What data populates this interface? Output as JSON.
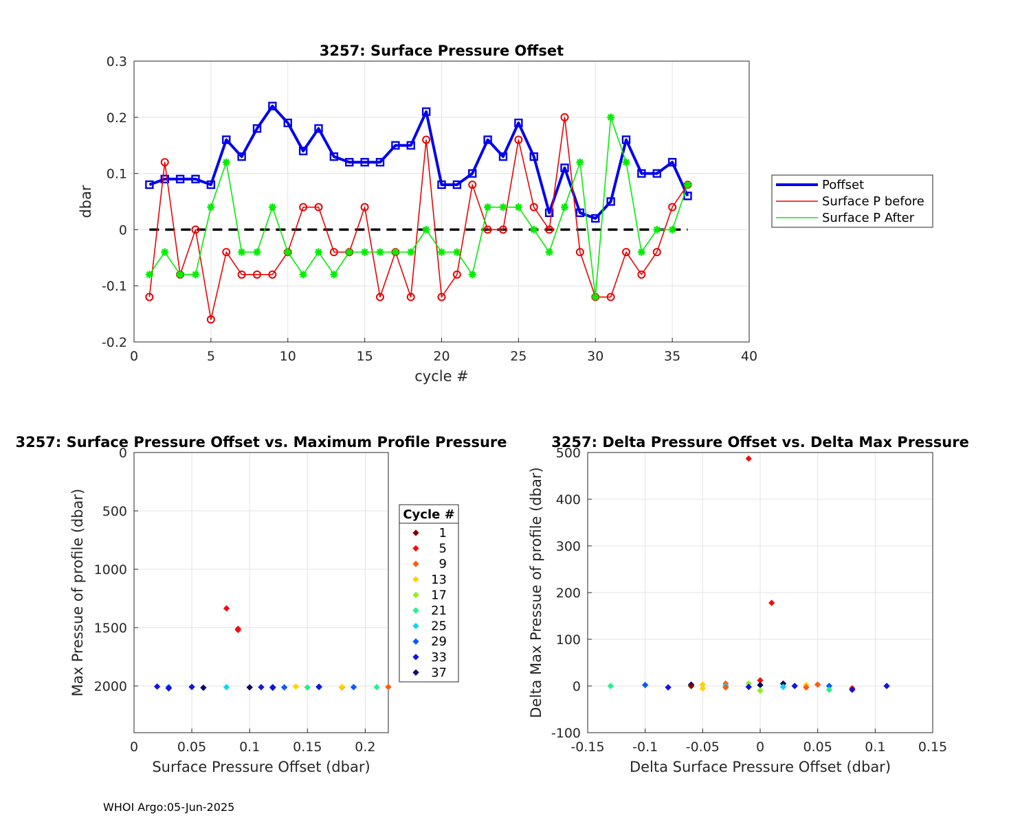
{
  "chart_data": [
    {
      "type": "line",
      "title": "3257: Surface Pressure Offset",
      "xlabel": "cycle #",
      "ylabel": "dbar",
      "xlim": [
        0,
        40
      ],
      "ylim": [
        -0.2,
        0.3
      ],
      "xticks": [
        "0",
        "5",
        "10",
        "15",
        "20",
        "25",
        "30",
        "35",
        "40"
      ],
      "yticks": [
        "-0.2",
        "-0.1",
        "0",
        "0.1",
        "0.2",
        "0.3"
      ],
      "grid": true,
      "legend_position": "right",
      "reference_line": {
        "y": 0,
        "style": "dashed",
        "color": "#000000"
      },
      "x": [
        1,
        2,
        3,
        4,
        5,
        6,
        7,
        8,
        9,
        10,
        11,
        12,
        13,
        14,
        15,
        16,
        17,
        18,
        19,
        20,
        21,
        22,
        23,
        24,
        25,
        26,
        27,
        28,
        29,
        30,
        31,
        32,
        33,
        34,
        35,
        36
      ],
      "series": [
        {
          "name": "Poffset",
          "color": "#0000ee",
          "marker": "square",
          "width": 4,
          "values": [
            0.08,
            0.09,
            0.09,
            0.09,
            0.08,
            0.16,
            0.13,
            0.18,
            0.22,
            0.19,
            0.14,
            0.18,
            0.13,
            0.12,
            0.12,
            0.12,
            0.15,
            0.15,
            0.21,
            0.08,
            0.08,
            0.1,
            0.16,
            0.13,
            0.19,
            0.13,
            0.03,
            0.11,
            0.03,
            0.02,
            0.05,
            0.16,
            0.1,
            0.1,
            0.12,
            0.06
          ]
        },
        {
          "name": "Surface P before",
          "color": "#ee0000",
          "marker": "circle",
          "width": 1.6,
          "values": [
            -0.12,
            0.12,
            -0.08,
            0.0,
            -0.16,
            -0.04,
            -0.08,
            -0.08,
            -0.08,
            -0.04,
            0.04,
            0.04,
            -0.04,
            -0.04,
            0.04,
            -0.12,
            -0.04,
            -0.12,
            0.16,
            -0.12,
            -0.08,
            0.08,
            0.0,
            0.0,
            0.16,
            0.04,
            0.0,
            0.2,
            -0.04,
            -0.12,
            -0.12,
            -0.04,
            -0.08,
            -0.04,
            0.04,
            0.08
          ]
        },
        {
          "name": "Surface P After",
          "color": "#00ee00",
          "marker": "star",
          "width": 1.6,
          "values": [
            -0.08,
            -0.04,
            -0.08,
            -0.08,
            0.04,
            0.12,
            -0.04,
            -0.04,
            0.04,
            -0.04,
            -0.08,
            -0.04,
            -0.08,
            -0.04,
            -0.04,
            -0.04,
            -0.04,
            -0.04,
            0.0,
            -0.04,
            -0.04,
            -0.08,
            0.04,
            0.04,
            0.04,
            0.0,
            -0.04,
            0.04,
            0.12,
            -0.12,
            0.2,
            0.12,
            -0.04,
            0.0,
            0.0,
            0.08
          ]
        }
      ]
    },
    {
      "type": "scatter",
      "title": "3257: Surface Pressure Offset vs. Maximum Profile Pressure",
      "xlabel": "Surface Pressure Offset (dbar)",
      "ylabel": "Max Pressue of profile (dbar)",
      "xlim": [
        0,
        0.22
      ],
      "ylim": [
        0,
        2400
      ],
      "y_reversed": true,
      "xticks": [
        "0",
        "0.05",
        "0.1",
        "0.15",
        "0.2"
      ],
      "yticks": [
        "0",
        "500",
        "1000",
        "1500",
        "2000"
      ],
      "grid": true,
      "legend_title": "Cycle #",
      "legend_position": "right",
      "legend": [
        {
          "label": "1",
          "color": "#800000"
        },
        {
          "label": "5",
          "color": "#ee1010"
        },
        {
          "label": "9",
          "color": "#ff5a14"
        },
        {
          "label": "13",
          "color": "#ffd200"
        },
        {
          "label": "17",
          "color": "#8cf01e"
        },
        {
          "label": "21",
          "color": "#28f08c"
        },
        {
          "label": "25",
          "color": "#14d2f5"
        },
        {
          "label": "29",
          "color": "#0a5aff"
        },
        {
          "label": "33",
          "color": "#1414dc"
        },
        {
          "label": "37",
          "color": "#0a0a64"
        }
      ],
      "points": [
        {
          "x": 0.02,
          "y": 2005,
          "color": "#1414dc"
        },
        {
          "x": 0.03,
          "y": 2010,
          "color": "#0a5aff"
        },
        {
          "x": 0.03,
          "y": 2020,
          "color": "#1414dc"
        },
        {
          "x": 0.05,
          "y": 2008,
          "color": "#1414dc"
        },
        {
          "x": 0.06,
          "y": 2015,
          "color": "#0a0a64"
        },
        {
          "x": 0.08,
          "y": 2010,
          "color": "#14d2f5"
        },
        {
          "x": 0.08,
          "y": 1335,
          "color": "#ee1010"
        },
        {
          "x": 0.09,
          "y": 1510,
          "color": "#ee1010"
        },
        {
          "x": 0.09,
          "y": 1520,
          "color": "#ee1010"
        },
        {
          "x": 0.1,
          "y": 2012,
          "color": "#0a0a64"
        },
        {
          "x": 0.11,
          "y": 2010,
          "color": "#1414dc"
        },
        {
          "x": 0.12,
          "y": 2015,
          "color": "#0a0a64"
        },
        {
          "x": 0.12,
          "y": 2010,
          "color": "#1414dc"
        },
        {
          "x": 0.13,
          "y": 2012,
          "color": "#0a5aff"
        },
        {
          "x": 0.14,
          "y": 2005,
          "color": "#ffd200"
        },
        {
          "x": 0.15,
          "y": 2012,
          "color": "#28f08c"
        },
        {
          "x": 0.16,
          "y": 2010,
          "color": "#0a5aff"
        },
        {
          "x": 0.16,
          "y": 2006,
          "color": "#1414dc"
        },
        {
          "x": 0.18,
          "y": 2012,
          "color": "#ff5a14"
        },
        {
          "x": 0.18,
          "y": 2008,
          "color": "#ffd200"
        },
        {
          "x": 0.19,
          "y": 2010,
          "color": "#0a5aff"
        },
        {
          "x": 0.21,
          "y": 2010,
          "color": "#28f08c"
        },
        {
          "x": 0.22,
          "y": 2008,
          "color": "#ff5a14"
        }
      ]
    },
    {
      "type": "scatter",
      "title": "3257: Delta Pressure Offset vs. Delta Max Pressure",
      "xlabel": "Delta Surface Pressure Offset (dbar)",
      "ylabel": "Delta Max Pressue of profile (dbar)",
      "xlim": [
        -0.15,
        0.15
      ],
      "ylim": [
        -100,
        500
      ],
      "xticks": [
        "-0.15",
        "-0.1",
        "-0.05",
        "0",
        "0.05",
        "0.1",
        "0.15"
      ],
      "yticks": [
        "-100",
        "0",
        "100",
        "200",
        "300",
        "400",
        "500"
      ],
      "grid": true,
      "points": [
        {
          "x": -0.13,
          "y": 0,
          "color": "#28f08c"
        },
        {
          "x": -0.1,
          "y": 2,
          "color": "#0a5aff"
        },
        {
          "x": -0.08,
          "y": -3,
          "color": "#1414dc"
        },
        {
          "x": -0.06,
          "y": 3,
          "color": "#0a0a64"
        },
        {
          "x": -0.06,
          "y": 0,
          "color": "#800000"
        },
        {
          "x": -0.05,
          "y": 3,
          "color": "#ffd200"
        },
        {
          "x": -0.05,
          "y": -5,
          "color": "#ffd200"
        },
        {
          "x": -0.03,
          "y": 5,
          "color": "#ff5a14"
        },
        {
          "x": -0.03,
          "y": 0,
          "color": "#14d2f5"
        },
        {
          "x": -0.03,
          "y": -3,
          "color": "#ff5a14"
        },
        {
          "x": -0.01,
          "y": 487,
          "color": "#ee1010"
        },
        {
          "x": -0.01,
          "y": 5,
          "color": "#8cf01e"
        },
        {
          "x": -0.01,
          "y": -2,
          "color": "#1414dc"
        },
        {
          "x": 0.0,
          "y": 12,
          "color": "#ee1010"
        },
        {
          "x": 0.0,
          "y": 2,
          "color": "#0a0a64"
        },
        {
          "x": 0.0,
          "y": -10,
          "color": "#8cf01e"
        },
        {
          "x": 0.01,
          "y": 178,
          "color": "#ee1010"
        },
        {
          "x": 0.02,
          "y": 5,
          "color": "#0a0a64"
        },
        {
          "x": 0.02,
          "y": -2,
          "color": "#14d2f5"
        },
        {
          "x": 0.03,
          "y": 0,
          "color": "#1414dc"
        },
        {
          "x": 0.04,
          "y": 2,
          "color": "#ffd200"
        },
        {
          "x": 0.04,
          "y": -3,
          "color": "#ff5a14"
        },
        {
          "x": 0.05,
          "y": 3,
          "color": "#ff5a14"
        },
        {
          "x": 0.06,
          "y": 0,
          "color": "#0a5aff"
        },
        {
          "x": 0.06,
          "y": -8,
          "color": "#28f08c"
        },
        {
          "x": 0.08,
          "y": -5,
          "color": "#ee1010"
        },
        {
          "x": 0.08,
          "y": -8,
          "color": "#1414dc"
        },
        {
          "x": 0.11,
          "y": 0,
          "color": "#1414dc"
        }
      ]
    }
  ],
  "footer": "WHOI Argo:05-Jun-2025"
}
